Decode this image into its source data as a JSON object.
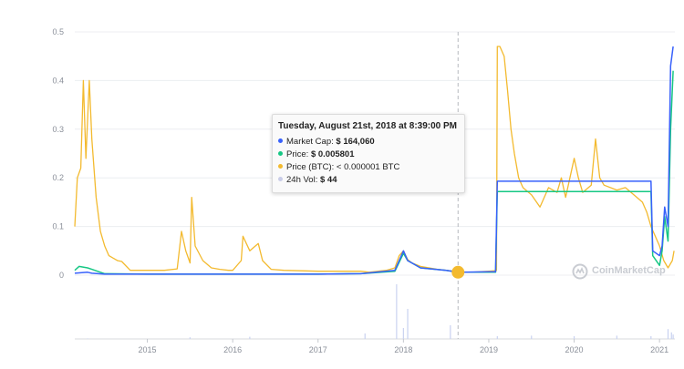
{
  "tooltip": {
    "title": "Tuesday, August 21st, 2018 at 8:39:00 PM",
    "rows": [
      {
        "label": "Market Cap:",
        "value": "$ 164,060",
        "color": "#3861fb"
      },
      {
        "label": "Price:",
        "value": "$ 0.005801",
        "color": "#16c784"
      },
      {
        "label": "Price (BTC):",
        "value": "< 0.000001 BTC",
        "color": "#f3ba2f"
      },
      {
        "label": "24h Vol:",
        "value": "$ 44",
        "color": "#c9cde8"
      }
    ]
  },
  "watermark": {
    "text": "CoinMarketCap",
    "icon": "coinmarketcap-logo-icon"
  },
  "colors": {
    "market_cap": "#3861fb",
    "price": "#16c784",
    "price_btc": "#f3ba2f",
    "volume": "#c9d2f0",
    "grid": "#eceef1",
    "axis_text": "#8a8f99",
    "crosshair": "#b6b9bf"
  },
  "chart_data": {
    "type": "line",
    "y_ticks": [
      "0",
      "0.1",
      "0.2",
      "0.3",
      "0.4",
      "0.5"
    ],
    "x_ticks": [
      "2015",
      "2016",
      "2017",
      "2018",
      "2019",
      "2020",
      "2021"
    ],
    "ylim": [
      0,
      0.5
    ],
    "xlim": [
      2014.15,
      2021.18
    ],
    "grid": true,
    "legend": "none",
    "hover": {
      "x": 2018.64,
      "y": 0.006
    },
    "series": [
      {
        "key": "market_cap",
        "x": [
          2014.15,
          2014.3,
          2014.35,
          2014.5,
          2015.0,
          2016.0,
          2017.0,
          2017.5,
          2017.9,
          2018.0,
          2018.05,
          2018.2,
          2018.5,
          2018.64,
          2019.0,
          2019.08,
          2019.1,
          2019.5,
          2020.0,
          2020.5,
          2020.9,
          2020.92,
          2021.0,
          2021.03,
          2021.06,
          2021.1,
          2021.13,
          2021.16
        ],
        "y": [
          0.004,
          0.006,
          0.004,
          0.002,
          0.002,
          0.002,
          0.002,
          0.003,
          0.01,
          0.05,
          0.03,
          0.015,
          0.01,
          0.006,
          0.007,
          0.007,
          0.193,
          0.193,
          0.193,
          0.193,
          0.193,
          0.05,
          0.04,
          0.06,
          0.14,
          0.1,
          0.43,
          0.47
        ]
      },
      {
        "key": "price",
        "x": [
          2014.15,
          2014.2,
          2014.3,
          2014.35,
          2014.5,
          2015.0,
          2016.0,
          2017.0,
          2017.5,
          2017.9,
          2018.0,
          2018.05,
          2018.2,
          2018.5,
          2018.64,
          2019.0,
          2019.08,
          2019.1,
          2019.5,
          2020.0,
          2020.5,
          2020.9,
          2020.92,
          2021.0,
          2021.03,
          2021.06,
          2021.1,
          2021.13,
          2021.16
        ],
        "y": [
          0.01,
          0.018,
          0.015,
          0.012,
          0.003,
          0.002,
          0.002,
          0.002,
          0.003,
          0.008,
          0.045,
          0.03,
          0.015,
          0.01,
          0.006,
          0.006,
          0.006,
          0.172,
          0.172,
          0.172,
          0.172,
          0.172,
          0.04,
          0.02,
          0.05,
          0.12,
          0.07,
          0.3,
          0.42
        ]
      },
      {
        "key": "price_btc",
        "x": [
          2014.15,
          2014.18,
          2014.22,
          2014.25,
          2014.28,
          2014.32,
          2014.35,
          2014.4,
          2014.45,
          2014.5,
          2014.55,
          2014.6,
          2014.65,
          2014.7,
          2014.8,
          2015.0,
          2015.2,
          2015.35,
          2015.4,
          2015.45,
          2015.5,
          2015.52,
          2015.56,
          2015.65,
          2015.75,
          2015.85,
          2015.95,
          2016.0,
          2016.1,
          2016.12,
          2016.2,
          2016.3,
          2016.35,
          2016.45,
          2016.6,
          2017.0,
          2017.3,
          2017.5,
          2017.6,
          2017.8,
          2017.9,
          2017.95,
          2018.0,
          2018.05,
          2018.1,
          2018.2,
          2018.4,
          2018.5,
          2018.64,
          2018.8,
          2019.0,
          2019.07,
          2019.09,
          2019.1,
          2019.13,
          2019.18,
          2019.22,
          2019.26,
          2019.3,
          2019.35,
          2019.4,
          2019.5,
          2019.6,
          2019.7,
          2019.8,
          2019.85,
          2019.9,
          2019.95,
          2020.0,
          2020.05,
          2020.1,
          2020.2,
          2020.25,
          2020.3,
          2020.35,
          2020.5,
          2020.6,
          2020.7,
          2020.8,
          2020.85,
          2020.9,
          2020.95,
          2021.0,
          2021.05,
          2021.1,
          2021.15,
          2021.17
        ],
        "y": [
          0.1,
          0.2,
          0.22,
          0.4,
          0.24,
          0.4,
          0.28,
          0.16,
          0.09,
          0.06,
          0.04,
          0.035,
          0.03,
          0.028,
          0.01,
          0.01,
          0.01,
          0.013,
          0.09,
          0.05,
          0.025,
          0.16,
          0.06,
          0.03,
          0.015,
          0.012,
          0.01,
          0.01,
          0.03,
          0.08,
          0.05,
          0.065,
          0.03,
          0.012,
          0.01,
          0.008,
          0.008,
          0.008,
          0.006,
          0.01,
          0.015,
          0.04,
          0.05,
          0.032,
          0.025,
          0.018,
          0.012,
          0.01,
          0.007,
          0.006,
          0.008,
          0.009,
          0.01,
          0.47,
          0.47,
          0.45,
          0.38,
          0.3,
          0.25,
          0.2,
          0.18,
          0.165,
          0.14,
          0.18,
          0.17,
          0.2,
          0.16,
          0.2,
          0.24,
          0.2,
          0.17,
          0.185,
          0.28,
          0.2,
          0.185,
          0.175,
          0.18,
          0.165,
          0.15,
          0.13,
          0.1,
          0.08,
          0.06,
          0.03,
          0.015,
          0.03,
          0.05
        ]
      },
      {
        "key": "volume",
        "x": [
          2014.3,
          2015.5,
          2016.2,
          2017.55,
          2017.92,
          2018.0,
          2018.05,
          2018.55,
          2019.1,
          2019.5,
          2020.0,
          2020.5,
          2020.9,
          2021.1,
          2021.14,
          2021.16
        ],
        "y": [
          0.01,
          0.03,
          0.04,
          0.1,
          1.0,
          0.2,
          0.55,
          0.25,
          0.05,
          0.06,
          0.05,
          0.06,
          0.05,
          0.18,
          0.12,
          0.08
        ]
      }
    ]
  }
}
